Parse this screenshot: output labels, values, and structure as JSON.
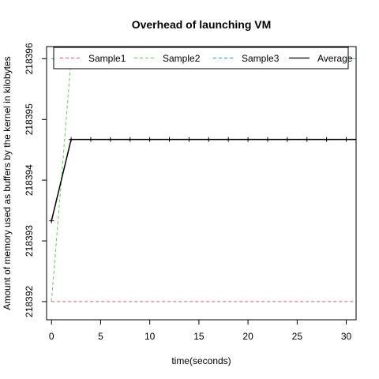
{
  "chart_data": {
    "type": "line",
    "title": "Overhead of launching VM",
    "xlabel": "time(seconds)",
    "ylabel": "Amount of memory used as buffers by the kernel in kilobytes",
    "xlim": [
      -0.5,
      31
    ],
    "ylim": [
      218391.7,
      218396.2
    ],
    "x_ticks": [
      0,
      5,
      10,
      15,
      20,
      25,
      30
    ],
    "x_tick_labels": [
      "0",
      "5",
      "10",
      "15",
      "20",
      "25",
      "30"
    ],
    "y_ticks": [
      218392,
      218393,
      218394,
      218395,
      218396
    ],
    "y_tick_labels": [
      "218392",
      "218393",
      "218394",
      "218395",
      "218396"
    ],
    "grid": false,
    "legend": {
      "placement": "top",
      "entries": [
        {
          "name": "Sample1",
          "color": "#DF536B",
          "dash": "dashed"
        },
        {
          "name": "Sample2",
          "color": "#61D04F",
          "dash": "dashed"
        },
        {
          "name": "Sample3",
          "color": "#2297E6",
          "dash": "dashed"
        },
        {
          "name": "Average",
          "color": "#000000",
          "dash": "solid"
        }
      ]
    },
    "series": [
      {
        "name": "Sample1",
        "color": "#DF536B",
        "dash": "4,3",
        "width": 1,
        "markers": false,
        "x": [
          0,
          2,
          4,
          6,
          8,
          10,
          12,
          14,
          16,
          18,
          20,
          22,
          24,
          26,
          28,
          30,
          31
        ],
        "y": [
          218392,
          218392,
          218392,
          218392,
          218392,
          218392,
          218392,
          218392,
          218392,
          218392,
          218392,
          218392,
          218392,
          218392,
          218392,
          218392,
          218392
        ]
      },
      {
        "name": "Sample2",
        "color": "#61D04F",
        "dash": "4,3",
        "width": 1,
        "markers": false,
        "x": [
          0,
          2,
          4,
          6,
          8,
          10,
          12,
          14,
          16,
          18,
          20,
          22,
          24,
          26,
          28,
          30,
          31
        ],
        "y": [
          218392,
          218396,
          218396,
          218396,
          218396,
          218396,
          218396,
          218396,
          218396,
          218396,
          218396,
          218396,
          218396,
          218396,
          218396,
          218396,
          218396
        ]
      },
      {
        "name": "Sample3",
        "color": "#2297E6",
        "dash": "4,3",
        "width": 1,
        "markers": false,
        "x": [
          0,
          2,
          4,
          6,
          8,
          10,
          12,
          14,
          16,
          18,
          20,
          22,
          24,
          26,
          28,
          30,
          31
        ],
        "y": [
          218396,
          218396,
          218396,
          218396,
          218396,
          218396,
          218396,
          218396,
          218396,
          218396,
          218396,
          218396,
          218396,
          218396,
          218396,
          218396,
          218396
        ]
      },
      {
        "name": "Average",
        "color": "#000000",
        "dash": "",
        "width": 1.5,
        "markers": true,
        "x": [
          0,
          2,
          4,
          6,
          8,
          10,
          12,
          14,
          16,
          18,
          20,
          22,
          24,
          26,
          28,
          30,
          31
        ],
        "y": [
          218393.33,
          218394.67,
          218394.67,
          218394.67,
          218394.67,
          218394.67,
          218394.67,
          218394.67,
          218394.67,
          218394.67,
          218394.67,
          218394.67,
          218394.67,
          218394.67,
          218394.67,
          218394.67,
          218394.67
        ]
      }
    ]
  }
}
